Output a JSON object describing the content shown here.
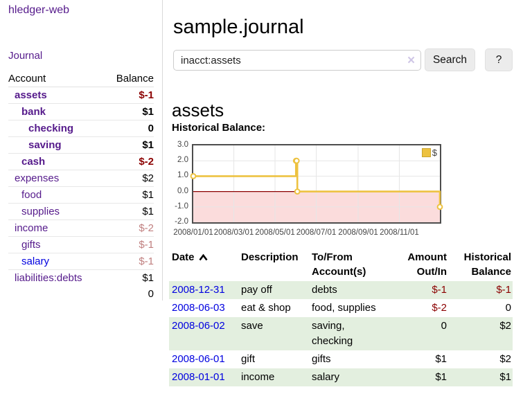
{
  "sidebar": {
    "brand": "hledger-web",
    "journal_link": "Journal",
    "accounts_table": {
      "account_header": "Account",
      "balance_header": "Balance",
      "rows": [
        {
          "name": "assets",
          "level": 0,
          "bold": true,
          "balance": "$-1"
        },
        {
          "name": "bank",
          "level": 1,
          "bold": true,
          "balance": "$1"
        },
        {
          "name": "checking",
          "level": 2,
          "bold": true,
          "balance": "0"
        },
        {
          "name": "saving",
          "level": 2,
          "bold": true,
          "balance": "$1"
        },
        {
          "name": "cash",
          "level": 1,
          "bold": true,
          "balance": "$-2"
        },
        {
          "name": "expenses",
          "level": 0,
          "bold": false,
          "balance": "$2"
        },
        {
          "name": "food",
          "level": 1,
          "bold": false,
          "balance": "$1"
        },
        {
          "name": "supplies",
          "level": 1,
          "bold": false,
          "balance": "$1"
        },
        {
          "name": "income",
          "level": 0,
          "bold": false,
          "balance": "$-2"
        },
        {
          "name": "gifts",
          "level": 1,
          "bold": false,
          "balance": "$-1"
        },
        {
          "name": "salary",
          "level": 1,
          "bold": false,
          "balance": "$-1",
          "unvisited": true
        },
        {
          "name": "liabilities:debts",
          "level": 0,
          "bold": false,
          "balance": "$1"
        }
      ],
      "total": "0"
    }
  },
  "header": {
    "title": "sample.journal"
  },
  "search": {
    "value": "inacct:assets",
    "clear_icon": "×",
    "search_button": "Search",
    "help_button": "?"
  },
  "account_page": {
    "heading": "assets",
    "chart_title": "Historical Balance:"
  },
  "chart_data": {
    "type": "line",
    "step": true,
    "title": "Historical Balance",
    "x_start": "2008-01-01",
    "x_span_days": 365,
    "ylim": [
      -2,
      3
    ],
    "y_ticks": [
      {
        "v": 3,
        "label": "3.0"
      },
      {
        "v": 2,
        "label": "2.0"
      },
      {
        "v": 1,
        "label": "1.0"
      },
      {
        "v": 0,
        "label": "0.0"
      },
      {
        "v": -1,
        "label": "-1.0"
      },
      {
        "v": -2,
        "label": "-2.0"
      }
    ],
    "x_ticks": [
      "2008/01/01",
      "2008/03/01",
      "2008/05/01",
      "2008/07/01",
      "2008/09/01",
      "2008/11/01"
    ],
    "series": [
      {
        "name": "$",
        "color": "#edc240",
        "points": [
          [
            "2008-01-01",
            1
          ],
          [
            "2008-06-01",
            2
          ],
          [
            "2008-06-02",
            2
          ],
          [
            "2008-06-03",
            0
          ],
          [
            "2008-12-31",
            -1
          ]
        ]
      }
    ],
    "grid": true,
    "gridline_color": "#e6e6e6",
    "border_color": "#4d4d4d",
    "negative_region_fill": "#fbdcdc",
    "zero_line_color": "#8b0000",
    "legend_position": "top-right",
    "legend_label": "$"
  },
  "transactions_table": {
    "columns": {
      "date": "Date",
      "description": "Description",
      "accounts": "To/From Account(s)",
      "amount": "Amount Out/In",
      "balance": "Historical Balance"
    },
    "rows": [
      {
        "date": "2008-12-31",
        "description": "pay off",
        "accounts": "debts",
        "amount": "$-1",
        "balance": "$-1"
      },
      {
        "date": "2008-06-03",
        "description": "eat & shop",
        "accounts": "food, supplies",
        "amount": "$-2",
        "balance": "0"
      },
      {
        "date": "2008-06-02",
        "description": "save",
        "accounts": "saving, checking",
        "amount": "0",
        "balance": "$2"
      },
      {
        "date": "2008-06-01",
        "description": "gift",
        "accounts": "gifts",
        "amount": "$1",
        "balance": "$2"
      },
      {
        "date": "2008-01-01",
        "description": "income",
        "accounts": "salary",
        "amount": "$1",
        "balance": "$1"
      }
    ]
  }
}
